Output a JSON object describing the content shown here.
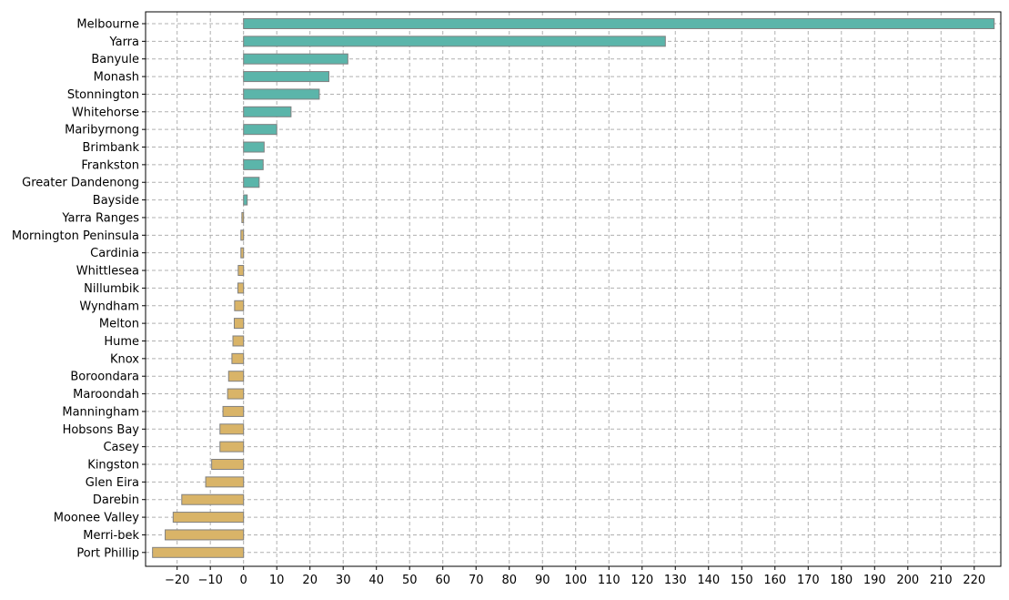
{
  "chart_data": {
    "type": "bar",
    "orientation": "horizontal",
    "title": "",
    "xlabel": "",
    "ylabel": "",
    "categories": [
      "Melbourne",
      "Yarra",
      "Banyule",
      "Monash",
      "Stonnington",
      "Whitehorse",
      "Maribyrnong",
      "Brimbank",
      "Frankston",
      "Greater Dandenong",
      "Bayside",
      "Yarra Ranges",
      "Mornington Peninsula",
      "Cardinia",
      "Whittlesea",
      "Nillumbik",
      "Wyndham",
      "Melton",
      "Hume",
      "Knox",
      "Boroondara",
      "Maroondah",
      "Manningham",
      "Hobsons Bay",
      "Casey",
      "Kingston",
      "Glen Eira",
      "Darebin",
      "Moonee Valley",
      "Merri-bek",
      "Port Phillip"
    ],
    "values": [
      226.0,
      127.0,
      31.4,
      25.7,
      22.8,
      14.3,
      10.0,
      6.2,
      5.9,
      4.7,
      1.1,
      -0.5,
      -0.8,
      -0.8,
      -1.6,
      -1.7,
      -2.7,
      -2.8,
      -3.2,
      -3.5,
      -4.5,
      -4.8,
      -6.2,
      -7.1,
      -7.1,
      -9.6,
      -11.4,
      -18.6,
      -21.2,
      -23.6,
      -27.4
    ],
    "xlim": [
      -29.5,
      228
    ],
    "xticks": [
      -20,
      -10,
      0,
      10,
      20,
      30,
      40,
      50,
      60,
      70,
      80,
      90,
      100,
      110,
      120,
      130,
      140,
      150,
      160,
      170,
      180,
      190,
      200,
      210,
      220
    ],
    "grid": true,
    "grid_style": "dashed",
    "legend": "none",
    "colors": {
      "positive": "#5bb5aa",
      "negative": "#d9b468",
      "bar_edge": "#808080",
      "grid": "#b0b0b0",
      "axis": "#000000"
    }
  }
}
